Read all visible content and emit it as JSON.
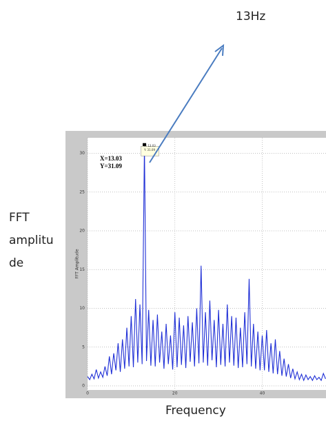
{
  "chart_data": {
    "type": "line",
    "annotation_top": "13Hz",
    "ylabel": "FFT amplitude",
    "xlabel": "Frequency",
    "inner_ylabel": "FFT Amplitude",
    "datatip": [
      "X=13.03",
      "Y=31.09"
    ],
    "small_tip": [
      "X: 13.03",
      "Y: 31.09"
    ],
    "xlim": [
      0,
      54.6
    ],
    "ylim": [
      0,
      32
    ],
    "xticks": [
      0,
      20,
      40
    ],
    "yticks": [
      0,
      5,
      10,
      15,
      20,
      25,
      30
    ],
    "grid": true,
    "series": [
      {
        "color": "#1f2fd6",
        "x": [
          0,
          0.5,
          1,
          1.5,
          2,
          2.5,
          3,
          3.5,
          4,
          4.5,
          5,
          5.5,
          6,
          6.5,
          7,
          7.5,
          8,
          8.5,
          9,
          9.5,
          10,
          10.5,
          11,
          11.5,
          12,
          12.5,
          13.03,
          13.5,
          14,
          14.5,
          15,
          15.5,
          16,
          16.5,
          17,
          17.5,
          18,
          18.5,
          19,
          19.5,
          20,
          20.5,
          21,
          21.5,
          22,
          22.5,
          23,
          23.5,
          24,
          24.5,
          25,
          25.5,
          26,
          26.5,
          27,
          27.5,
          28,
          28.5,
          29,
          29.5,
          30,
          30.5,
          31,
          31.5,
          32,
          32.5,
          33,
          33.5,
          34,
          34.5,
          35,
          35.5,
          36,
          36.5,
          37,
          37.5,
          38,
          38.5,
          39,
          39.5,
          40,
          40.5,
          41,
          41.5,
          42,
          42.5,
          43,
          43.5,
          44,
          44.5,
          45,
          45.5,
          46,
          46.5,
          47,
          47.5,
          48,
          48.5,
          49,
          49.5,
          50,
          50.5,
          51,
          51.5,
          52,
          52.5,
          53,
          53.5,
          54,
          54.5
        ],
        "values": [
          1.2,
          0.8,
          1.5,
          0.9,
          2.1,
          1.0,
          1.8,
          1.1,
          2.5,
          1.3,
          3.8,
          1.5,
          4.2,
          2.0,
          5.5,
          1.8,
          6.0,
          2.2,
          7.5,
          2.5,
          9.0,
          2.4,
          11.2,
          3.0,
          10.5,
          2.8,
          31.09,
          3.2,
          9.8,
          2.6,
          8.5,
          2.5,
          9.2,
          3.0,
          7.0,
          2.2,
          8.0,
          2.8,
          6.5,
          2.1,
          9.5,
          2.4,
          8.8,
          2.7,
          7.8,
          2.3,
          9.0,
          3.1,
          8.2,
          2.5,
          10.0,
          2.9,
          15.5,
          3.0,
          9.5,
          2.6,
          11.0,
          3.3,
          8.5,
          2.4,
          9.8,
          2.7,
          8.0,
          2.5,
          10.5,
          3.0,
          9.0,
          2.6,
          8.8,
          2.3,
          7.5,
          2.4,
          9.5,
          2.8,
          13.8,
          2.5,
          8.0,
          2.2,
          7.0,
          2.0,
          6.5,
          2.0,
          7.2,
          1.8,
          5.5,
          1.6,
          6.0,
          1.5,
          4.5,
          1.3,
          3.5,
          1.2,
          2.8,
          1.0,
          2.2,
          0.9,
          1.8,
          0.8,
          1.5,
          0.7,
          1.4,
          0.8,
          1.2,
          0.7,
          1.3,
          0.8,
          1.1,
          0.7,
          1.6,
          0.9
        ]
      }
    ]
  }
}
